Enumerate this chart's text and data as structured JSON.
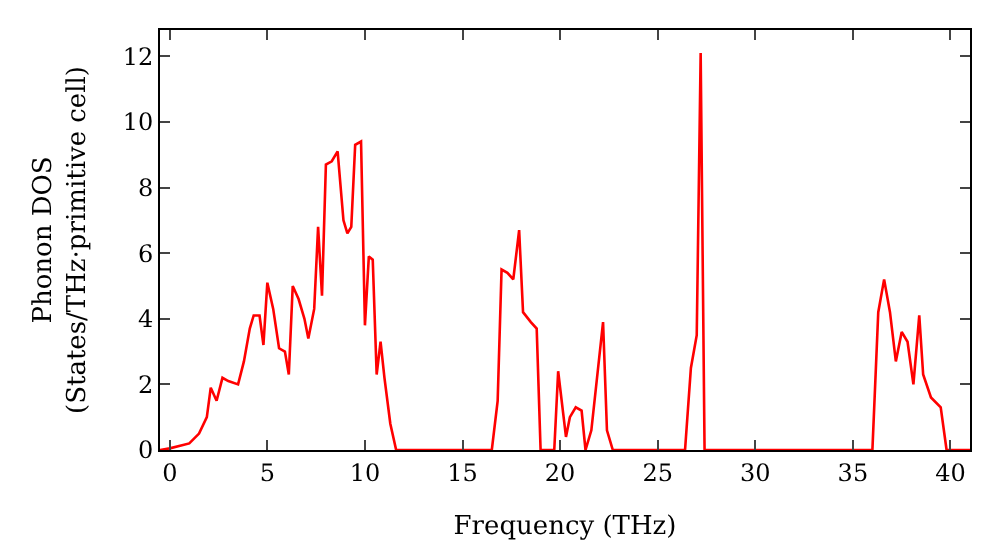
{
  "chart_data": {
    "type": "line",
    "xlabel": "Frequency (THz)",
    "ylabel": "Phonon DOS\n(States/THz·primitive cell)",
    "x": [
      -0.5,
      0,
      1,
      1.5,
      1.9,
      2.1,
      2.4,
      2.7,
      3,
      3.5,
      3.8,
      4.1,
      4.3,
      4.6,
      4.8,
      5.0,
      5.3,
      5.6,
      5.9,
      6.1,
      6.3,
      6.6,
      6.9,
      7.1,
      7.4,
      7.6,
      7.8,
      8.0,
      8.3,
      8.6,
      8.9,
      9.1,
      9.3,
      9.5,
      9.8,
      10.0,
      10.2,
      10.4,
      10.6,
      10.8,
      11.0,
      11.3,
      11.6,
      16.5,
      16.8,
      17.0,
      17.3,
      17.6,
      17.9,
      18.1,
      18.5,
      18.8,
      19.0,
      19.7,
      19.9,
      20.3,
      20.5,
      20.8,
      21.1,
      21.3,
      21.6,
      22.2,
      22.4,
      22.7,
      26.4,
      26.7,
      27.0,
      27.2,
      27.4,
      36.0,
      36.3,
      36.6,
      36.9,
      37.2,
      37.5,
      37.8,
      38.1,
      38.4,
      38.6,
      39.0,
      39.5,
      39.8,
      41
    ],
    "series": [
      {
        "color": "#ff0000",
        "values": [
          0,
          0.05,
          0.2,
          0.5,
          1.0,
          1.9,
          1.5,
          2.2,
          2.1,
          2.0,
          2.7,
          3.7,
          4.1,
          4.1,
          3.2,
          5.1,
          4.3,
          3.1,
          3.0,
          2.3,
          5.0,
          4.6,
          4.0,
          3.4,
          4.3,
          6.8,
          4.7,
          8.7,
          8.8,
          9.1,
          7.0,
          6.6,
          6.8,
          9.3,
          9.4,
          3.8,
          5.9,
          5.8,
          2.3,
          3.3,
          2.2,
          0.8,
          0,
          0,
          1.5,
          5.5,
          5.4,
          5.2,
          6.7,
          4.2,
          3.9,
          3.7,
          0,
          0,
          2.4,
          0.4,
          1.0,
          1.3,
          1.2,
          0,
          0.6,
          3.9,
          0.6,
          0,
          0,
          2.5,
          3.5,
          12.1,
          0,
          0,
          4.2,
          5.2,
          4.2,
          2.7,
          3.6,
          3.3,
          2.0,
          4.1,
          2.3,
          1.6,
          1.3,
          0,
          0
        ]
      }
    ],
    "xlim": [
      -0.5,
      41
    ],
    "ylim": [
      0,
      12.8
    ],
    "xticks": [
      0,
      5,
      10,
      15,
      20,
      25,
      30,
      35,
      40
    ],
    "yticks": [
      0,
      2,
      4,
      6,
      8,
      10,
      12
    ],
    "marker": "none",
    "line_style": "solid"
  }
}
